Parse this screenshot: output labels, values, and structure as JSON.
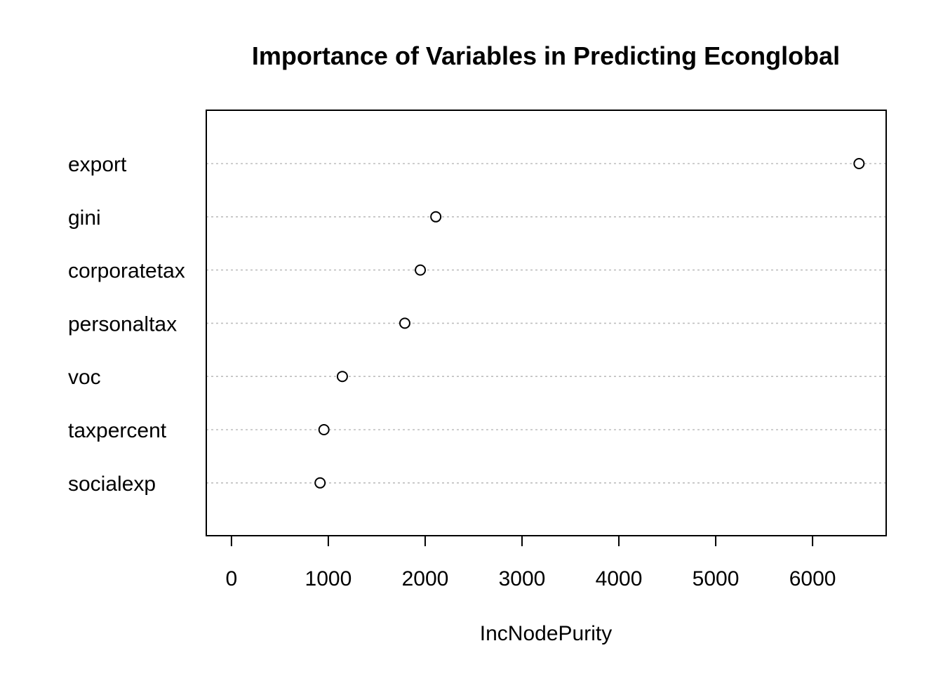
{
  "chart_data": {
    "type": "scatter",
    "title": "Importance of Variables in Predicting Econglobal",
    "xlabel": "IncNodePurity",
    "ylabel": "",
    "categories": [
      "export",
      "gini",
      "corporatetax",
      "personaltax",
      "voc",
      "taxpercent",
      "socialexp"
    ],
    "values": [
      6480,
      2110,
      1950,
      1790,
      1145,
      955,
      915
    ],
    "xlim": [
      -260,
      6760
    ],
    "xticks": [
      0,
      1000,
      2000,
      3000,
      4000,
      5000,
      6000
    ],
    "xtick_labels": [
      "0",
      "1000",
      "2000",
      "3000",
      "4000",
      "5000",
      "6000"
    ],
    "grid": "horizontal dotted guide lines per category",
    "marker": "open circle",
    "colors": {
      "marker": "#000000",
      "grid": "#bebebe",
      "frame": "#000000"
    }
  }
}
